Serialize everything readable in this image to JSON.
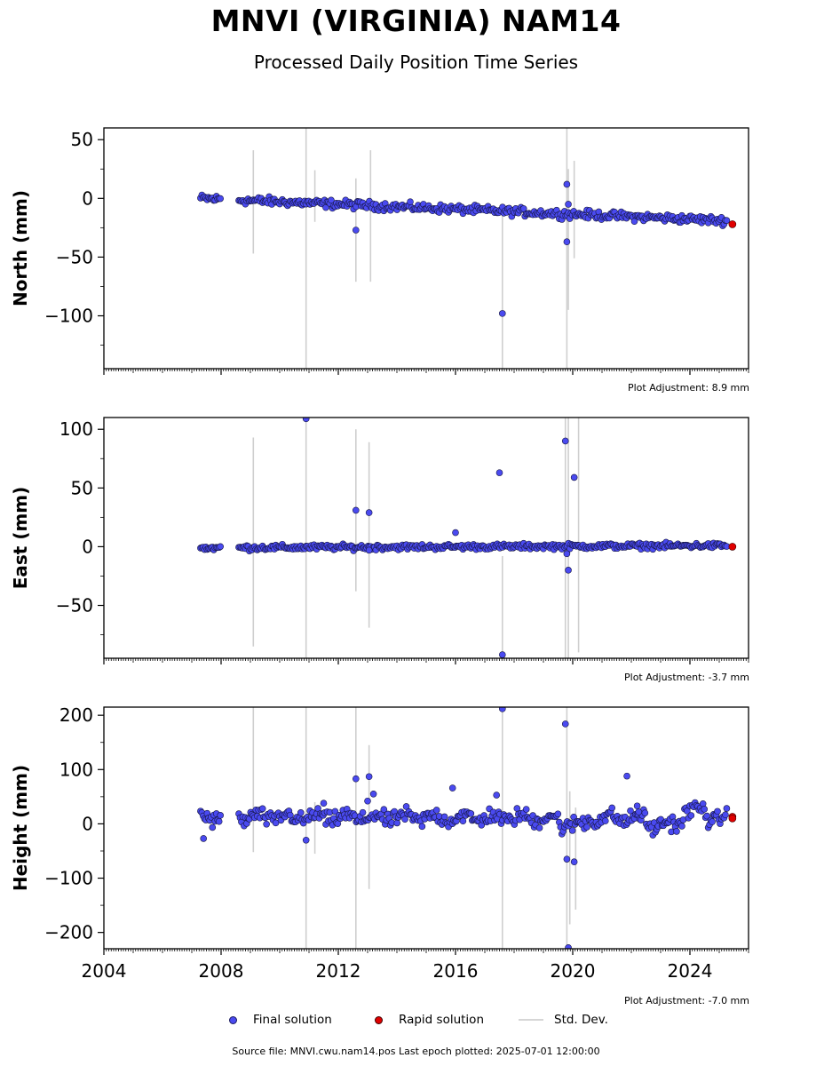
{
  "header": {
    "title": "MNVI (VIRGINIA) NAM14",
    "subtitle": "Processed Daily Position Time Series"
  },
  "legend": {
    "final": "Final solution",
    "rapid": "Rapid solution",
    "std": "Std. Dev."
  },
  "footer": {
    "source": "Source file: MNVI.cwu.nam14.pos  Last epoch plotted: 2025-07-01 12:00:00"
  },
  "colors": {
    "final": "#4a4af0",
    "rapid": "#e00000",
    "std": "#cfcfcf"
  },
  "chart_data": [
    {
      "type": "scatter",
      "ylabel": "North (mm)",
      "adjustment": "Plot Adjustment: 8.9 mm",
      "xlim": [
        2004,
        2026
      ],
      "ylim": [
        -145,
        60
      ],
      "yticks": [
        50,
        0,
        -50,
        -100
      ],
      "trend": {
        "start": [
          2007.3,
          0
        ],
        "end": [
          2025.3,
          -19
        ],
        "scatter": 3
      },
      "outliers": [
        {
          "x": 2012.6,
          "y": -27
        },
        {
          "x": 2017.6,
          "y": -98
        },
        {
          "x": 2019.8,
          "y": 12
        },
        {
          "x": 2019.8,
          "y": -37
        },
        {
          "x": 2019.85,
          "y": -5
        }
      ],
      "std_bars": [
        {
          "x": 2009.1,
          "lo": -47,
          "hi": 41
        },
        {
          "x": 2010.9,
          "lo": -145,
          "hi": 60
        },
        {
          "x": 2011.2,
          "lo": -20,
          "hi": 24
        },
        {
          "x": 2012.6,
          "lo": -71,
          "hi": 17
        },
        {
          "x": 2013.1,
          "lo": -71,
          "hi": 41
        },
        {
          "x": 2017.6,
          "lo": -145,
          "hi": -10
        },
        {
          "x": 2019.8,
          "lo": -145,
          "hi": 60
        },
        {
          "x": 2019.85,
          "lo": -95,
          "hi": 25
        },
        {
          "x": 2020.05,
          "lo": -51,
          "hi": 32
        }
      ],
      "rapid": [
        {
          "x": 2025.45,
          "y": -22
        }
      ],
      "gap": [
        2008.0,
        2008.6
      ]
    },
    {
      "type": "scatter",
      "ylabel": "East (mm)",
      "adjustment": "Plot Adjustment: -3.7 mm",
      "xlim": [
        2004,
        2026
      ],
      "ylim": [
        -95,
        110
      ],
      "yticks": [
        100,
        50,
        0,
        -50
      ],
      "trend": {
        "start": [
          2007.3,
          -1
        ],
        "end": [
          2025.3,
          1
        ],
        "scatter": 2
      },
      "outliers": [
        {
          "x": 2010.9,
          "y": 109
        },
        {
          "x": 2012.6,
          "y": 31
        },
        {
          "x": 2013.05,
          "y": 29
        },
        {
          "x": 2013.05,
          "y": -3
        },
        {
          "x": 2017.5,
          "y": 63
        },
        {
          "x": 2017.6,
          "y": -92
        },
        {
          "x": 2016.0,
          "y": 12
        },
        {
          "x": 2019.75,
          "y": 90
        },
        {
          "x": 2019.8,
          "y": -6
        },
        {
          "x": 2019.85,
          "y": -20
        },
        {
          "x": 2020.05,
          "y": 59
        }
      ],
      "std_bars": [
        {
          "x": 2009.1,
          "lo": -85,
          "hi": 93
        },
        {
          "x": 2010.9,
          "lo": -95,
          "hi": 110
        },
        {
          "x": 2012.6,
          "lo": -38,
          "hi": 100
        },
        {
          "x": 2013.05,
          "lo": -69,
          "hi": 89
        },
        {
          "x": 2017.6,
          "lo": -95,
          "hi": -8
        },
        {
          "x": 2019.75,
          "lo": -95,
          "hi": 110
        },
        {
          "x": 2019.85,
          "lo": -95,
          "hi": 110
        },
        {
          "x": 2020.2,
          "lo": -90,
          "hi": 110
        }
      ],
      "rapid": [
        {
          "x": 2025.45,
          "y": 0
        }
      ],
      "gap": [
        2008.0,
        2008.6
      ]
    },
    {
      "type": "scatter",
      "ylabel": "Height (mm)",
      "adjustment": "Plot Adjustment: -7.0 mm",
      "xlabel": "",
      "xlim": [
        2004,
        2026
      ],
      "xticks": [
        2004,
        2008,
        2012,
        2016,
        2020,
        2024
      ],
      "ylim": [
        -230,
        215
      ],
      "yticks": [
        200,
        100,
        0,
        -100,
        -200
      ],
      "trend": {
        "start": [
          2007.3,
          12
        ],
        "end": [
          2025.3,
          10
        ],
        "scatter": 12
      },
      "outliers": [
        {
          "x": 2007.4,
          "y": -27
        },
        {
          "x": 2010.9,
          "y": -30
        },
        {
          "x": 2011.5,
          "y": 38
        },
        {
          "x": 2012.6,
          "y": 83
        },
        {
          "x": 2013.05,
          "y": 87
        },
        {
          "x": 2013.2,
          "y": 55
        },
        {
          "x": 2013.0,
          "y": 42
        },
        {
          "x": 2015.9,
          "y": 66
        },
        {
          "x": 2017.4,
          "y": 53
        },
        {
          "x": 2017.6,
          "y": 212
        },
        {
          "x": 2019.75,
          "y": 184
        },
        {
          "x": 2019.8,
          "y": -65
        },
        {
          "x": 2019.85,
          "y": -228
        },
        {
          "x": 2020.05,
          "y": -70
        },
        {
          "x": 2021.85,
          "y": 88
        },
        {
          "x": 2022.2,
          "y": 33
        },
        {
          "x": 2022.25,
          "y": 22
        }
      ],
      "std_bars": [
        {
          "x": 2009.1,
          "lo": -52,
          "hi": 215
        },
        {
          "x": 2010.9,
          "lo": -230,
          "hi": 215
        },
        {
          "x": 2011.2,
          "lo": -55,
          "hi": 40
        },
        {
          "x": 2012.6,
          "lo": -230,
          "hi": 215
        },
        {
          "x": 2013.05,
          "lo": -120,
          "hi": 145
        },
        {
          "x": 2017.6,
          "lo": -230,
          "hi": 215
        },
        {
          "x": 2019.8,
          "lo": -230,
          "hi": 215
        },
        {
          "x": 2019.9,
          "lo": -185,
          "hi": 60
        },
        {
          "x": 2020.1,
          "lo": -158,
          "hi": 30
        }
      ],
      "rapid": [
        {
          "x": 2025.45,
          "y": 13
        },
        {
          "x": 2025.45,
          "y": 10
        }
      ],
      "gap": [
        2008.0,
        2008.6
      ]
    }
  ]
}
